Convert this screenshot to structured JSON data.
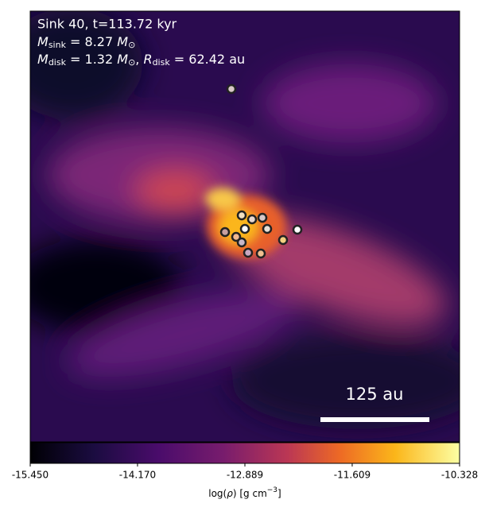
{
  "chart_data": {
    "type": "image",
    "annotations": {
      "line1": "Sink 40, t=113.72 kyr",
      "line2": [
        "M",
        "sink",
        " = 8.27 ",
        "M",
        "⊙"
      ],
      "line3": [
        "M",
        "disk",
        " = 1.32 ",
        "M",
        "⊙",
        ", ",
        "R",
        "disk",
        " = 62.42 au"
      ],
      "scale_bar": "125 au"
    },
    "colorbar": {
      "label": [
        "log(",
        "ρ",
        ") [g cm",
        "−3",
        "]"
      ],
      "xlim": [
        -15.45,
        -10.328
      ],
      "xticks": [
        {
          "value": -15.45,
          "label": "-15.450"
        },
        {
          "value": -14.17,
          "label": "-14.170"
        },
        -12.889,
        -11.609,
        -10.328
      ]
    }
  }
}
